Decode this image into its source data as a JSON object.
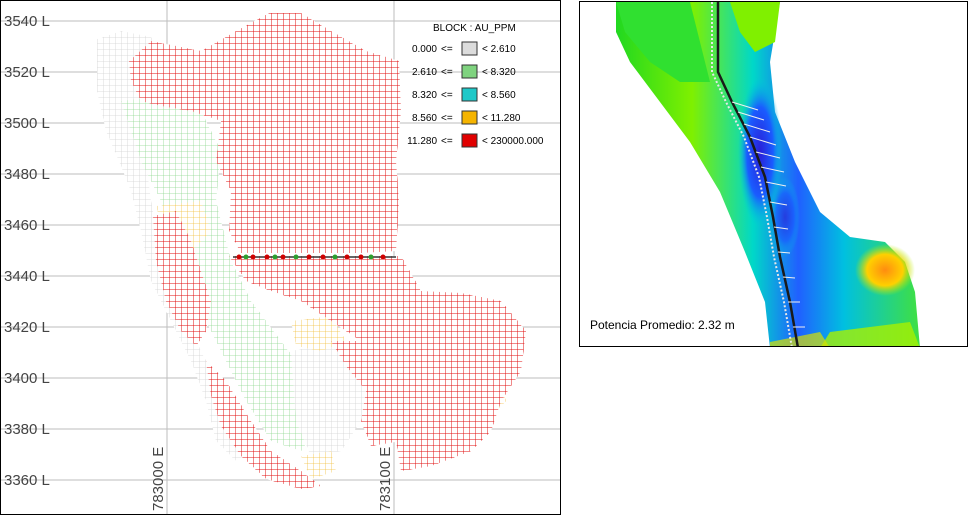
{
  "section_plan": {
    "northing_labels": [
      "3540 L",
      "3520 L",
      "3500 L",
      "3480 L",
      "3460 L",
      "3440 L",
      "3420 L",
      "3400 L",
      "3380 L",
      "3360 L"
    ],
    "easting_labels": [
      "783000 E",
      "783100 E"
    ],
    "legend": {
      "title": "BLOCK : AU_PPM",
      "entries": [
        {
          "min": "0.000",
          "op": "<=",
          "max": "< 2.610",
          "color": "#dcdcdc"
        },
        {
          "min": "2.610",
          "op": "<=",
          "max": "< 8.320",
          "color": "#7fd37f"
        },
        {
          "min": "8.320",
          "op": "<=",
          "max": "< 8.560",
          "color": "#1ec8c8"
        },
        {
          "min": "8.560",
          "op": "<=",
          "max": "< 11.280",
          "color": "#f5b400"
        },
        {
          "min": "11.280",
          "op": "<=",
          "max": "< 230000.000",
          "color": "#e00000"
        }
      ]
    }
  },
  "thickness_model": {
    "caption": "Potencia Promedio: 2.32 m"
  }
}
